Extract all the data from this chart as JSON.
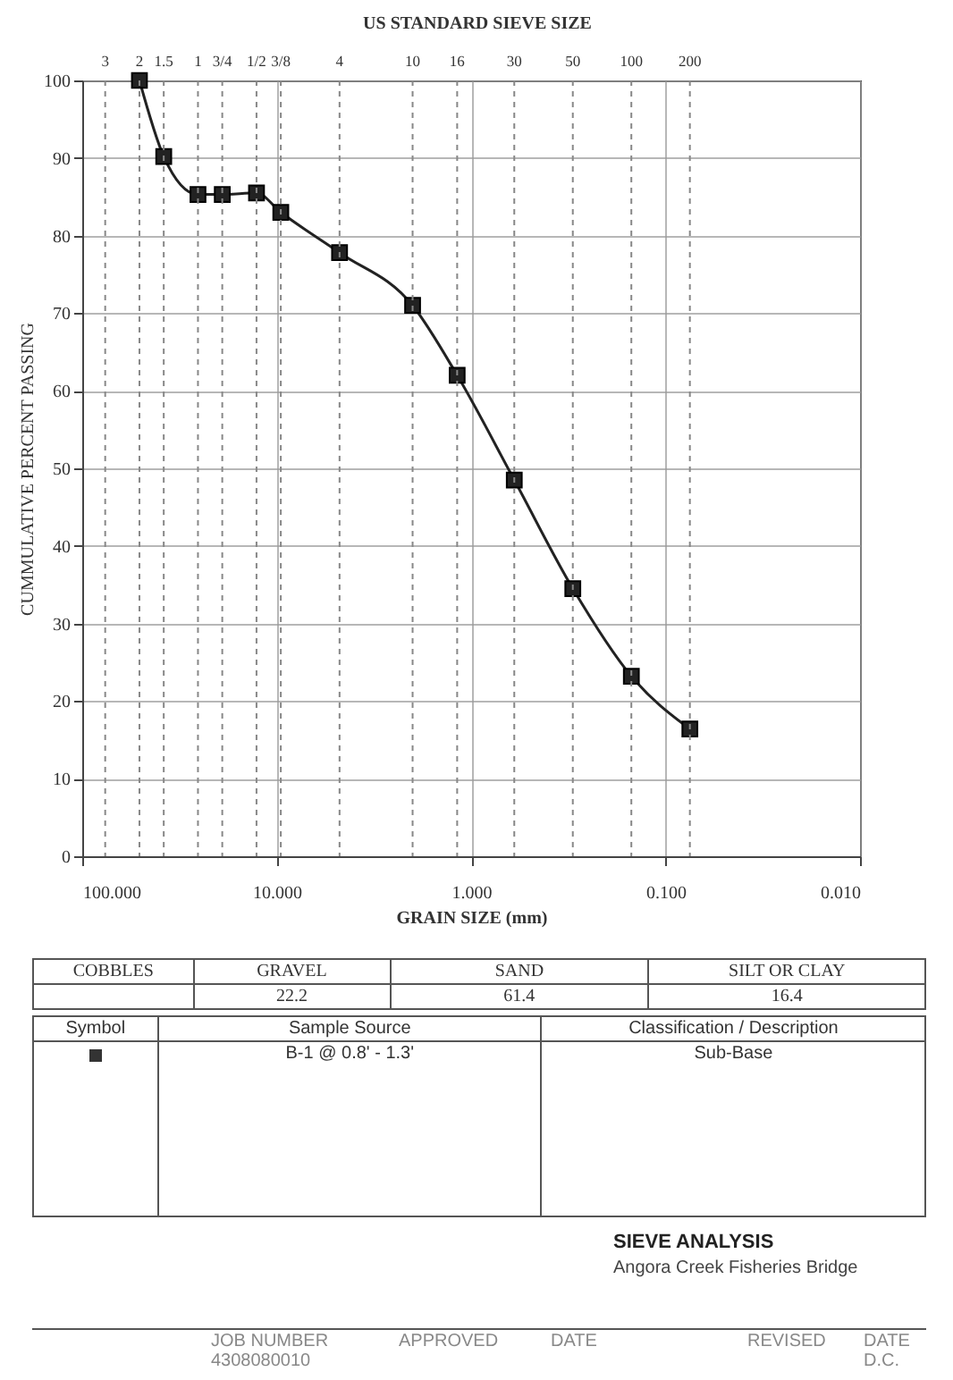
{
  "chart_data": {
    "type": "line",
    "title": "SIEVE ANALYSIS",
    "subtitle": "Angora Creek Fisheries Bridge",
    "xlabel": "GRAIN SIZE (mm)",
    "ylabel": "CUMMULATIVE PERCENT PASSING",
    "log": "x",
    "grid": true,
    "marker": "square",
    "xlim": [
      100,
      0.01
    ],
    "xticks": [
      {
        "value": 100,
        "label": "100.000"
      },
      {
        "value": 10,
        "label": "10.000"
      },
      {
        "value": 1,
        "label": "1.000"
      },
      {
        "value": 0.1,
        "label": "0.100"
      },
      {
        "value": 0.01,
        "label": "0.010"
      }
    ],
    "ylim": [
      0,
      100
    ],
    "yticks": [
      0,
      10,
      20,
      30,
      40,
      50,
      60,
      70,
      80,
      90,
      100
    ],
    "series": [
      {
        "color": "#222222",
        "x": [
          50.8,
          38.1,
          25.4,
          19.05,
          12.7,
          9.525,
          4.75,
          2.0,
          1.18,
          0.6,
          0.3,
          0.15,
          0.075
        ],
        "values": [
          100,
          90.2,
          85.3,
          85.3,
          85.5,
          83,
          77.8,
          71,
          62,
          48.5,
          34.5,
          23.2,
          16.4
        ]
      }
    ],
    "ref_lines": [
      {
        "axis": "x",
        "value": 76.2,
        "line_style": "dashed"
      },
      {
        "axis": "x",
        "value": 50.8,
        "line_style": "dashed"
      },
      {
        "axis": "x",
        "value": 38.1,
        "line_style": "dashed"
      },
      {
        "axis": "x",
        "value": 25.4,
        "line_style": "dashed"
      },
      {
        "axis": "x",
        "value": 19.05,
        "line_style": "dashed"
      },
      {
        "axis": "x",
        "value": 12.7,
        "line_style": "dashed"
      },
      {
        "axis": "x",
        "value": 9.525,
        "line_style": "dashed"
      },
      {
        "axis": "x",
        "value": 4.75,
        "line_style": "dashed"
      },
      {
        "axis": "x",
        "value": 2.0,
        "line_style": "dashed"
      },
      {
        "axis": "x",
        "value": 1.18,
        "line_style": "dashed"
      },
      {
        "axis": "x",
        "value": 0.6,
        "line_style": "dashed"
      },
      {
        "axis": "x",
        "value": 0.3,
        "line_style": "dashed"
      },
      {
        "axis": "x",
        "value": 0.15,
        "line_style": "dashed"
      },
      {
        "axis": "x",
        "value": 0.075,
        "line_style": "dashed"
      }
    ],
    "annotations": [
      "COBBLES",
      "GRAVEL",
      "SAND",
      "SILT OR CLAY",
      "22.2",
      "61.4",
      "16.4",
      "Symbol",
      "Sample Source",
      "Classification / Description",
      "B-1 @ 0.8' - 1.3'",
      "Sub-Base",
      "JOB NUMBER",
      "4308080010",
      "APPROVED",
      "DATE",
      "REVISED",
      "DATE",
      "D.C.",
      "US STANDARD SIEVE SIZE",
      "3",
      "2",
      "1.5",
      "1",
      "3/4",
      "1/2",
      "3/8",
      "4",
      "10",
      "16",
      "30",
      "50",
      "100",
      "200"
    ]
  }
}
